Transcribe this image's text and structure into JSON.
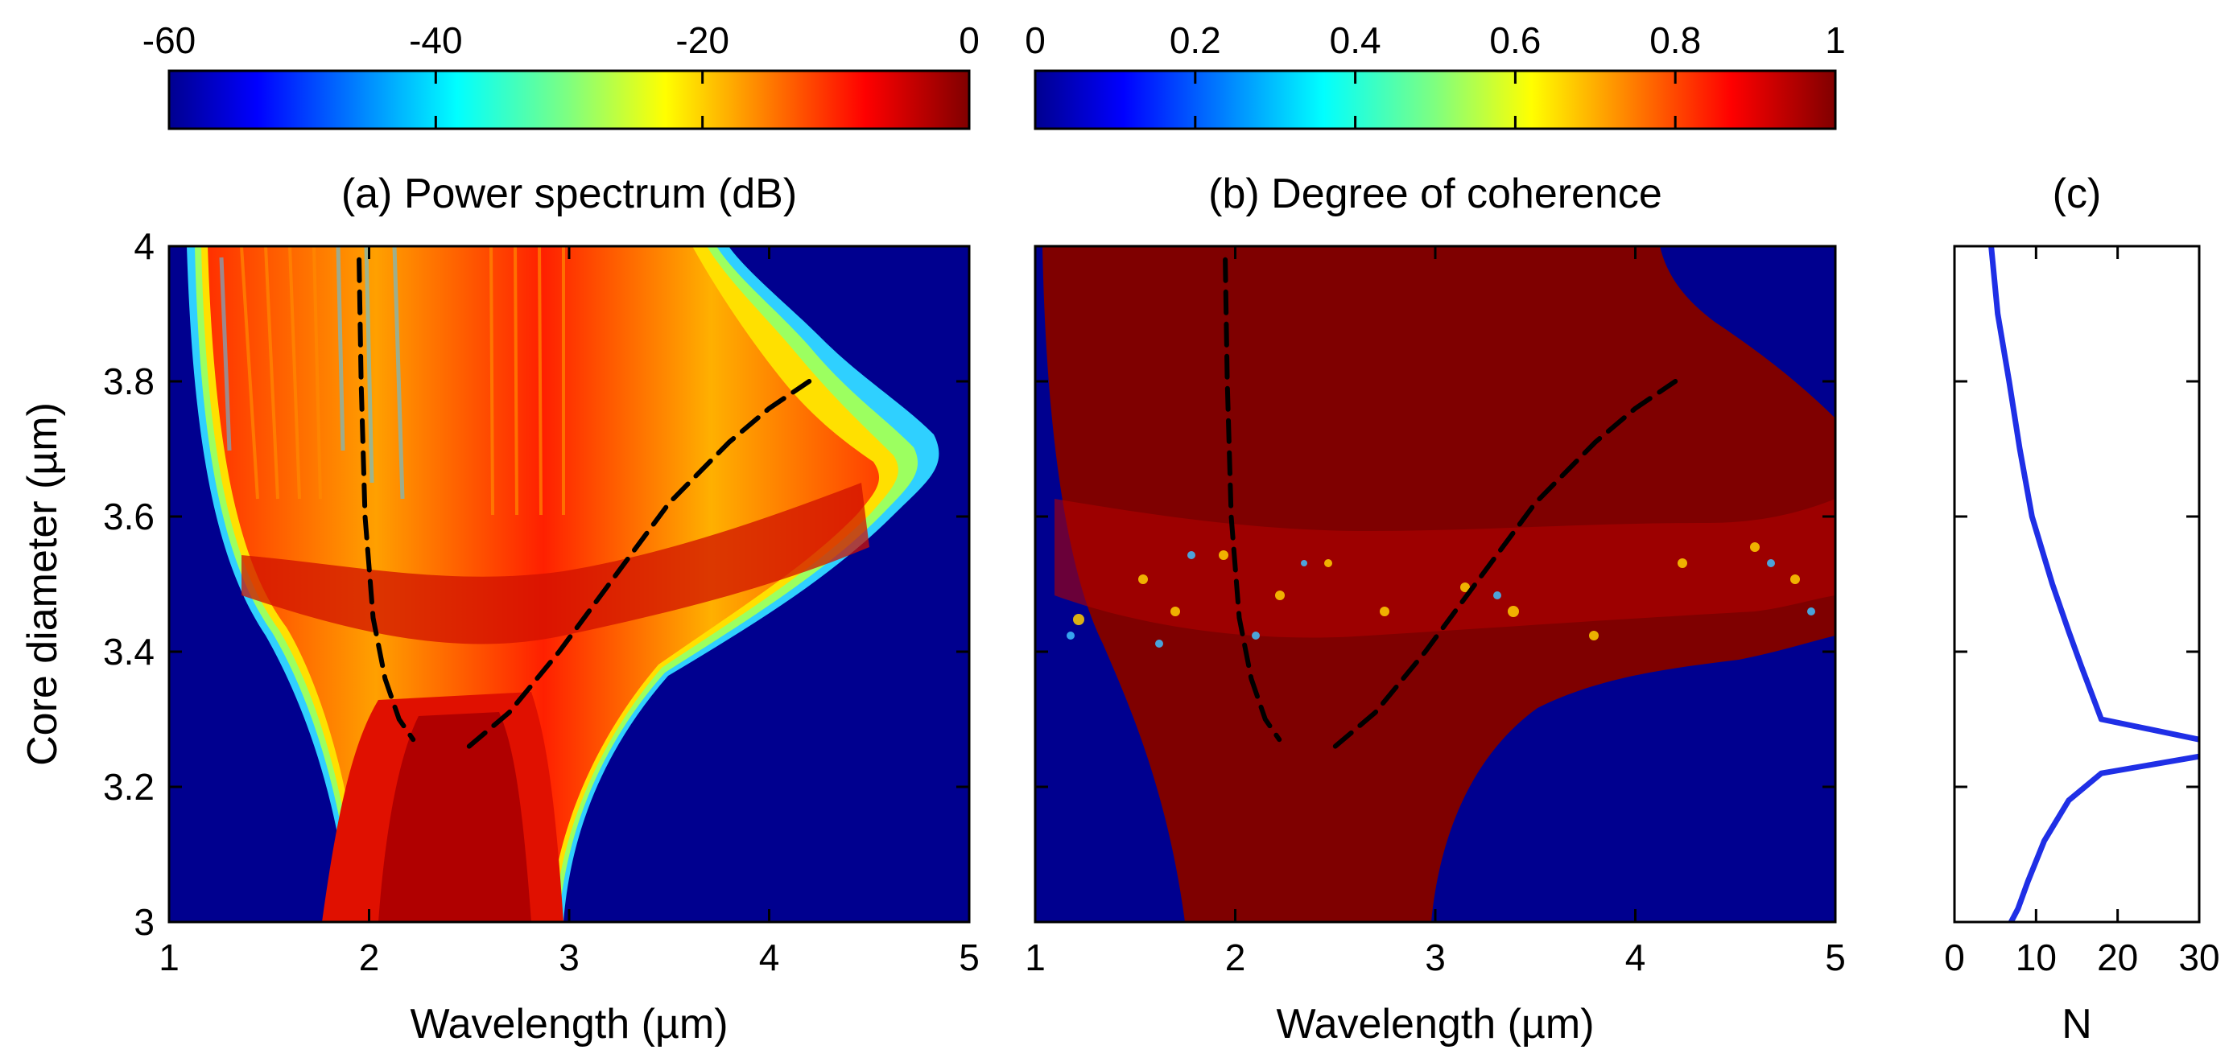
{
  "chart_data": [
    {
      "type": "heatmap",
      "title": "(a) Power spectrum (dB)",
      "xlabel": "Wavelength (µm)",
      "ylabel": "Core diameter (µm)",
      "xlim": [
        1,
        5
      ],
      "ylim": [
        3,
        4
      ],
      "xticks": [
        "1",
        "2",
        "3",
        "4",
        "5"
      ],
      "yticks": [
        "3",
        "3.2",
        "3.4",
        "3.6",
        "3.8",
        "4"
      ],
      "colorbar": {
        "min": -60,
        "max": 0,
        "ticks": [
          "-60",
          "-40",
          "-20",
          "0"
        ],
        "position": "top"
      },
      "colormap": "jet",
      "background_color": "#00008f",
      "overlay_curves": [
        {
          "style": "dashed",
          "color": "#000000",
          "points": [
            [
              1.95,
              3.98
            ],
            [
              1.96,
              3.8
            ],
            [
              1.98,
              3.6
            ],
            [
              2.02,
              3.45
            ],
            [
              2.08,
              3.36
            ],
            [
              2.15,
              3.3
            ],
            [
              2.22,
              3.27
            ]
          ]
        },
        {
          "style": "dashed",
          "color": "#000000",
          "points": [
            [
              2.5,
              3.26
            ],
            [
              2.7,
              3.31
            ],
            [
              2.95,
              3.4
            ],
            [
              3.2,
              3.5
            ],
            [
              3.5,
              3.62
            ],
            [
              3.8,
              3.71
            ],
            [
              4.0,
              3.76
            ],
            [
              4.2,
              3.8
            ]
          ]
        }
      ],
      "notable_regions": [
        {
          "description": "pump band",
          "x_range": [
            2.2,
            3.0
          ],
          "y_range": [
            3.0,
            3.3
          ],
          "level_dB": -2
        },
        {
          "description": "broadened continuum",
          "x_range": [
            1.2,
            4.8
          ],
          "y_range": [
            3.35,
            3.65
          ],
          "level_dB": -8
        },
        {
          "description": "upper striated band",
          "x_range": [
            1.15,
            4.3
          ],
          "y_range": [
            3.6,
            4.0
          ],
          "level_dB": -10
        }
      ]
    },
    {
      "type": "heatmap",
      "title": "(b) Degree of coherence",
      "xlabel": "Wavelength (µm)",
      "ylabel": "",
      "xlim": [
        1,
        5
      ],
      "ylim": [
        3,
        4
      ],
      "xticks": [
        "1",
        "2",
        "3",
        "4",
        "5"
      ],
      "yticks": [
        "3",
        "3.2",
        "3.4",
        "3.6",
        "3.8",
        "4"
      ],
      "colorbar": {
        "min": 0,
        "max": 1,
        "ticks": [
          "0",
          "0.2",
          "0.4",
          "0.6",
          "0.8",
          "1"
        ],
        "position": "top"
      },
      "colormap": "jet",
      "background_color": "#00008f",
      "coherent_region_color": "#7f0000",
      "overlay_curves": [
        {
          "style": "dashed",
          "color": "#000000",
          "points": [
            [
              1.95,
              3.98
            ],
            [
              1.96,
              3.8
            ],
            [
              1.98,
              3.6
            ],
            [
              2.02,
              3.45
            ],
            [
              2.08,
              3.36
            ],
            [
              2.15,
              3.3
            ],
            [
              2.22,
              3.27
            ]
          ]
        },
        {
          "style": "dashed",
          "color": "#000000",
          "points": [
            [
              2.5,
              3.26
            ],
            [
              2.7,
              3.31
            ],
            [
              2.95,
              3.4
            ],
            [
              3.2,
              3.5
            ],
            [
              3.5,
              3.62
            ],
            [
              3.8,
              3.71
            ],
            [
              4.0,
              3.76
            ],
            [
              4.2,
              3.8
            ]
          ]
        }
      ],
      "notable_regions": [
        {
          "description": "decoherent speckle band",
          "x_range": [
            1.15,
            5.0
          ],
          "y_range": [
            3.38,
            3.58
          ]
        }
      ]
    },
    {
      "type": "line",
      "title": "(c)",
      "xlabel": "N",
      "ylabel": "",
      "xlim": [
        0,
        30
      ],
      "ylim": [
        3,
        4
      ],
      "xticks": [
        "0",
        "10",
        "20",
        "30"
      ],
      "series": [
        {
          "color": "#1f2fe6",
          "x": [
            4.5,
            5.3,
            6.7,
            8.0,
            9.5,
            12.0,
            14.0,
            15.5,
            18.0,
            30
          ],
          "y": [
            4.0,
            3.9,
            3.8,
            3.7,
            3.6,
            3.5,
            3.43,
            3.38,
            3.3,
            3.27
          ]
        },
        {
          "color": "#1f2fe6",
          "x": [
            30,
            18.0,
            14.0,
            11.0,
            9.0,
            7.8,
            6.5
          ],
          "y": [
            3.245,
            3.22,
            3.18,
            3.12,
            3.06,
            3.02,
            2.99
          ]
        }
      ]
    }
  ]
}
